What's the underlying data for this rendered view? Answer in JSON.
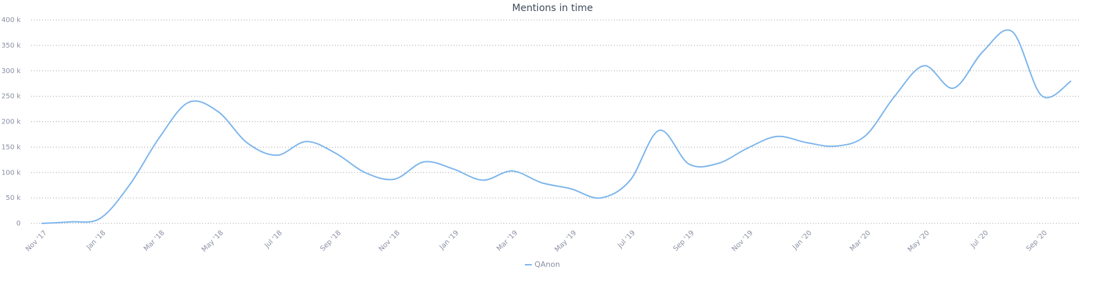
{
  "chart_data": {
    "type": "line",
    "title": "Mentions in time",
    "categories": [
      "Nov '17",
      null,
      "Jan '18",
      null,
      "Mar '18",
      null,
      "May '18",
      null,
      "Jul '18",
      null,
      "Sep '18",
      null,
      "Nov '18",
      null,
      "Jan '19",
      null,
      "Mar '19",
      null,
      "May '19",
      null,
      "Jul '19",
      null,
      "Sep '19",
      null,
      "Nov '19",
      null,
      "Jan '20",
      null,
      "Mar '20",
      null,
      "May '20",
      null,
      "Jul '20",
      null,
      "Sep '20",
      null
    ],
    "series": [
      {
        "name": "QAnon",
        "color": "#7cb5ec",
        "values": [
          0,
          3000,
          10000,
          76000,
          168000,
          238000,
          220000,
          158000,
          134000,
          161000,
          138000,
          100000,
          87000,
          121000,
          107000,
          85000,
          103000,
          80000,
          68000,
          50000,
          84000,
          183000,
          117000,
          118000,
          148000,
          171000,
          159000,
          152000,
          172000,
          250000,
          310000,
          266000,
          338000,
          377000,
          251000,
          280000
        ]
      }
    ],
    "ylim": [
      0,
      400000
    ],
    "yticks": [
      {
        "value": 0,
        "label": "0"
      },
      {
        "value": 50000,
        "label": "50 k"
      },
      {
        "value": 100000,
        "label": "100 k"
      },
      {
        "value": 150000,
        "label": "150 k"
      },
      {
        "value": 200000,
        "label": "200 k"
      },
      {
        "value": 250000,
        "label": "250 k"
      },
      {
        "value": 300000,
        "label": "300 k"
      },
      {
        "value": 350000,
        "label": "350 k"
      },
      {
        "value": 400000,
        "label": "400 k"
      }
    ],
    "grid": true,
    "legend": "bottom"
  }
}
